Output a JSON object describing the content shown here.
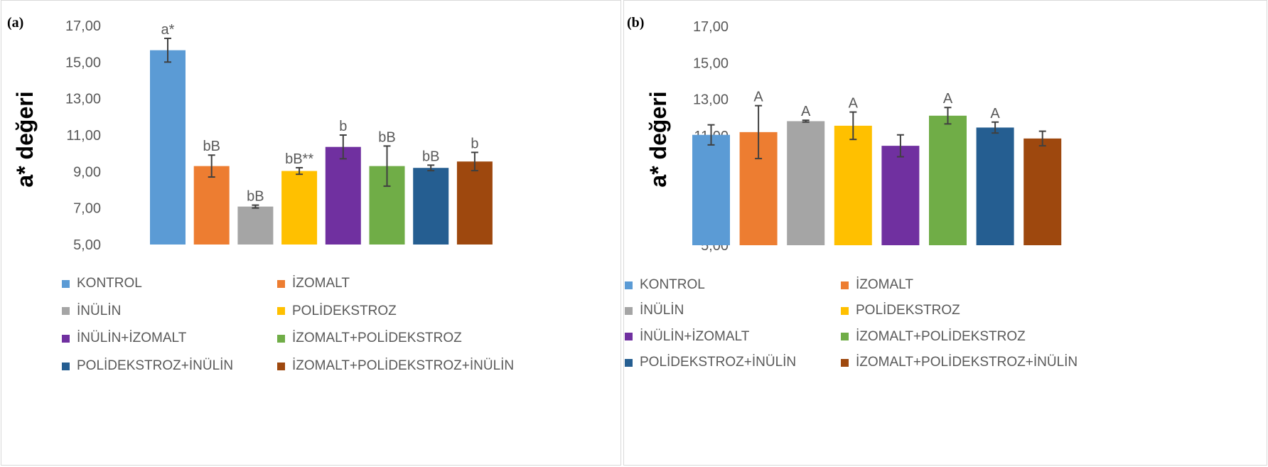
{
  "legend_entries": [
    {
      "label": "KONTROL",
      "color": "#5B9BD5"
    },
    {
      "label": "İZOMALT",
      "color": "#ED7D31"
    },
    {
      "label": "İNÜLİN",
      "color": "#A5A5A5"
    },
    {
      "label": "POLİDEKSTROZ",
      "color": "#FFC000"
    },
    {
      "label": "İNÜLİN+İZOMALT",
      "color": "#7030A0"
    },
    {
      "label": "İZOMALT+POLİDEKSTROZ",
      "color": "#70AD47"
    },
    {
      "label": "POLİDEKSTROZ+İNÜLİN",
      "color": "#255E91"
    },
    {
      "label": "İZOMALT+POLİDEKSTROZ+İNÜLİN",
      "color": "#9E480E"
    }
  ],
  "chart_data": [
    {
      "panel": "(a)",
      "type": "bar",
      "ylabel": "a* değeri",
      "ylim": [
        5,
        17
      ],
      "yticks": [
        "5,00",
        "7,00",
        "9,00",
        "11,00",
        "13,00",
        "15,00",
        "17,00"
      ],
      "values": [
        15.65,
        9.3,
        7.08,
        9.03,
        10.35,
        9.3,
        9.2,
        9.55
      ],
      "errors": [
        0.65,
        0.6,
        0.08,
        0.18,
        0.65,
        1.1,
        0.15,
        0.5
      ],
      "labels": [
        "a*",
        "bB",
        "bB",
        "bB**",
        "b",
        "bB",
        "bB",
        "b"
      ],
      "grid": false,
      "legend": "bottom"
    },
    {
      "panel": "(b)",
      "type": "bar",
      "ylabel": "a* değeri",
      "ylim": [
        5,
        17
      ],
      "yticks": [
        "5,00",
        "7,00",
        "9,00",
        "11,00",
        "13,00",
        "15,00",
        "17,00"
      ],
      "values": [
        11.05,
        11.2,
        11.8,
        11.55,
        10.45,
        12.1,
        11.45,
        10.85
      ],
      "errors": [
        0.55,
        1.45,
        0.05,
        0.75,
        0.6,
        0.45,
        0.3,
        0.4
      ],
      "labels": [
        "",
        "A",
        "A",
        "A",
        "",
        "A",
        "A",
        ""
      ],
      "grid": false,
      "legend": "bottom"
    }
  ]
}
